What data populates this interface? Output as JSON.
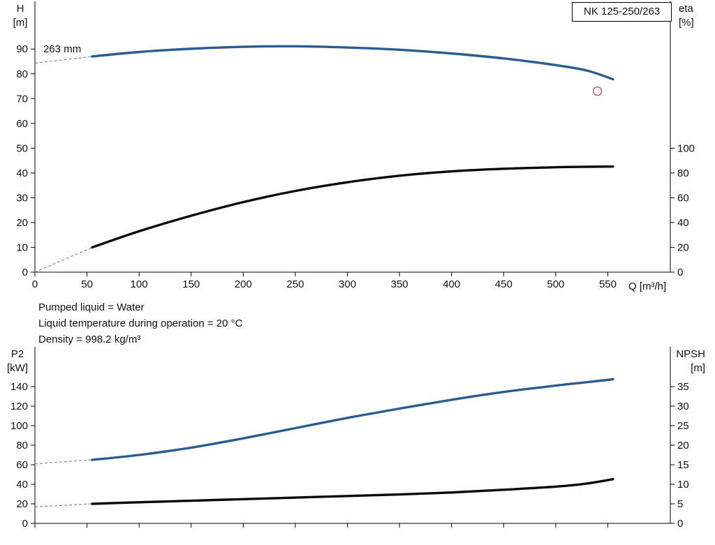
{
  "info": {
    "lines": [
      "Pumped liquid = Water",
      "Liquid temperature during operation = 20 °C",
      "Density = 998.2 kg/m³"
    ]
  },
  "chart_data": [
    {
      "type": "line",
      "title": "NK 125-250/263",
      "left_axis": {
        "label": "H",
        "unit": "[m]",
        "min": 0,
        "max": 100,
        "ticks": [
          0,
          10,
          20,
          30,
          40,
          50,
          60,
          70,
          80,
          90
        ]
      },
      "right_axis": {
        "label": "eta",
        "unit": "[%]",
        "min": 0,
        "max": 100,
        "ticks": [
          0,
          20,
          40,
          60,
          80,
          100
        ]
      },
      "x_axis": {
        "label": "Q [m³/h]",
        "min": 0,
        "max": 610,
        "ticks": [
          0,
          50,
          100,
          150,
          200,
          250,
          300,
          350,
          400,
          450,
          500,
          550
        ],
        "show_labels": true
      },
      "series": [
        {
          "name": "head-curve",
          "label": "263 mm",
          "axis": "left",
          "color": "#2a5d8f",
          "width": 3.4,
          "points": [
            [
              55,
              87
            ],
            [
              100,
              88.8
            ],
            [
              150,
              90.1
            ],
            [
              200,
              90.9
            ],
            [
              250,
              91.1
            ],
            [
              300,
              90.6
            ],
            [
              350,
              89.7
            ],
            [
              400,
              88.2
            ],
            [
              450,
              86.2
            ],
            [
              500,
              83.5
            ],
            [
              530,
              81.3
            ],
            [
              555,
              77.8
            ]
          ],
          "dashed_lead": {
            "color": "#7d8ca3",
            "points": [
              [
                0,
                84.3
              ],
              [
                55,
                87
              ]
            ]
          }
        },
        {
          "name": "efficiency-curve",
          "axis": "right",
          "color": "#0a0a0a",
          "width": 3.4,
          "points": [
            [
              55,
              20
            ],
            [
              100,
              33
            ],
            [
              150,
              45.5
            ],
            [
              200,
              56.5
            ],
            [
              250,
              65.5
            ],
            [
              300,
              72.5
            ],
            [
              350,
              77.8
            ],
            [
              400,
              81.3
            ],
            [
              450,
              83.4
            ],
            [
              500,
              84.6
            ],
            [
              530,
              85
            ],
            [
              555,
              85.2
            ]
          ],
          "dashed_lead": {
            "color": "#8a8a8a",
            "points": [
              [
                0,
                0
              ],
              [
                55,
                20
              ]
            ]
          }
        }
      ],
      "duty_point": {
        "q": 540,
        "h": 73,
        "color": "#cc4455"
      }
    },
    {
      "type": "line",
      "title": "",
      "left_axis": {
        "label": "P2",
        "unit": "[kW]",
        "min": 0,
        "max": 160,
        "ticks": [
          0,
          20,
          40,
          60,
          80,
          100,
          120,
          140
        ]
      },
      "right_axis": {
        "label": "NPSH",
        "unit": "[m]",
        "min": 0,
        "max": 40,
        "ticks": [
          0,
          5,
          10,
          15,
          20,
          25,
          30,
          35
        ]
      },
      "x_axis": {
        "label": "",
        "min": 0,
        "max": 610,
        "ticks": [
          0,
          50,
          100,
          150,
          200,
          250,
          300,
          350,
          400,
          450,
          500,
          550
        ],
        "show_labels": false
      },
      "series": [
        {
          "name": "p2-curve",
          "axis": "left",
          "color": "#2a5d8f",
          "width": 3.4,
          "points": [
            [
              55,
              65
            ],
            [
              100,
              70
            ],
            [
              150,
              77.5
            ],
            [
              200,
              87
            ],
            [
              250,
              97.5
            ],
            [
              300,
              108
            ],
            [
              350,
              117.5
            ],
            [
              400,
              126.5
            ],
            [
              450,
              134.5
            ],
            [
              500,
              141
            ],
            [
              530,
              144.5
            ],
            [
              555,
              147.5
            ]
          ],
          "dashed_lead": {
            "color": "#7d8ca3",
            "points": [
              [
                0,
                61
              ],
              [
                55,
                65
              ]
            ]
          }
        },
        {
          "name": "npsh-curve",
          "axis": "right",
          "color": "#0a0a0a",
          "width": 3.4,
          "points": [
            [
              55,
              5
            ],
            [
              100,
              5.4
            ],
            [
              150,
              5.8
            ],
            [
              200,
              6.2
            ],
            [
              250,
              6.6
            ],
            [
              300,
              7
            ],
            [
              350,
              7.4
            ],
            [
              400,
              7.9
            ],
            [
              450,
              8.6
            ],
            [
              500,
              9.4
            ],
            [
              530,
              10.2
            ],
            [
              555,
              11.3
            ]
          ],
          "dashed_lead": {
            "color": "#8a8a8a",
            "points": [
              [
                0,
                4.2
              ],
              [
                55,
                5
              ]
            ]
          }
        }
      ]
    }
  ]
}
